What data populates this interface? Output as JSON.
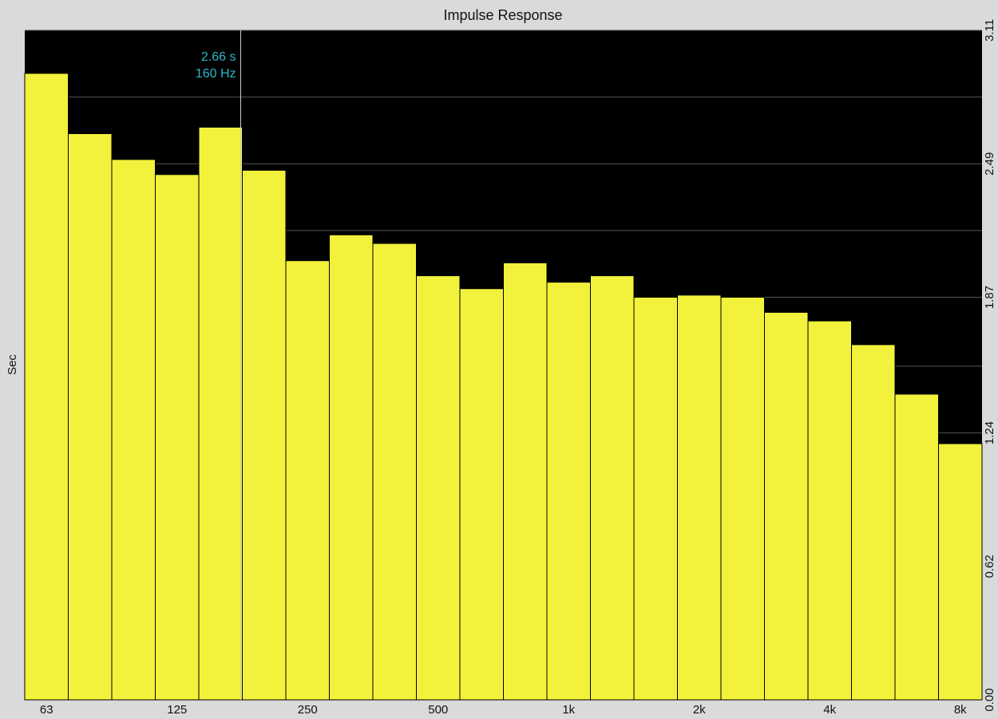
{
  "chart_data": {
    "type": "bar",
    "title": "Impulse Response",
    "y_label": "Sec",
    "categories": [
      "63",
      null,
      null,
      "125",
      null,
      null,
      "250",
      null,
      null,
      "500",
      null,
      null,
      "1k",
      null,
      null,
      "2k",
      null,
      null,
      "4k",
      null,
      null,
      "8k"
    ],
    "values": [
      2.91,
      2.63,
      2.51,
      2.44,
      2.66,
      2.46,
      2.04,
      2.16,
      2.12,
      1.97,
      1.91,
      2.03,
      1.94,
      1.97,
      1.87,
      1.88,
      1.87,
      1.8,
      1.76,
      1.65,
      1.42,
      1.19
    ],
    "color": "#f2f23c",
    "ylim": [
      0,
      3.11
    ],
    "yticks": [
      {
        "value": 0,
        "label": "0.00"
      },
      0.62,
      1.24,
      1.87,
      2.49,
      3.11
    ],
    "minor_yticks": [
      0.31,
      0.93,
      1.55,
      2.18,
      2.8
    ],
    "grid": true,
    "annotation": [
      "2.66 s",
      "160 Hz"
    ]
  }
}
